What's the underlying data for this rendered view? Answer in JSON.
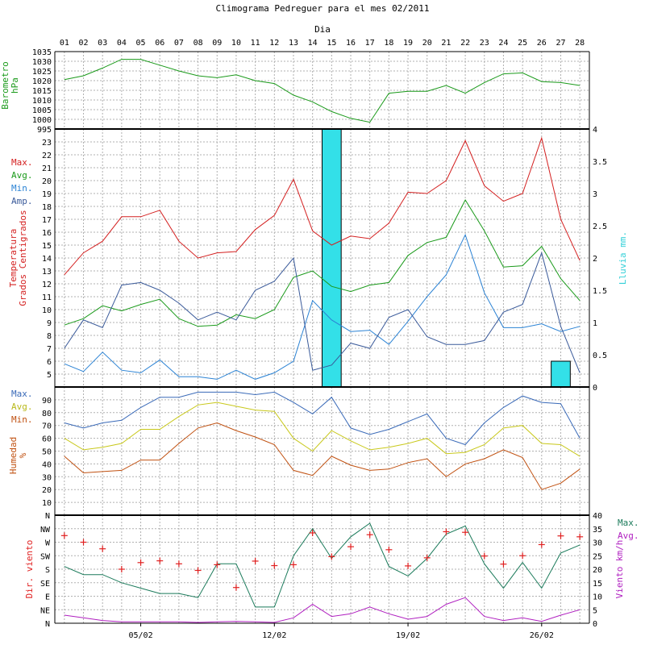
{
  "title": "Climograma Pedreguer para el mes 02/2011",
  "day_axis_label": "Dia",
  "days": [
    "01",
    "02",
    "03",
    "04",
    "05",
    "06",
    "07",
    "08",
    "09",
    "10",
    "11",
    "12",
    "13",
    "14",
    "15",
    "16",
    "17",
    "18",
    "19",
    "20",
    "21",
    "22",
    "23",
    "24",
    "25",
    "26",
    "27",
    "28"
  ],
  "date_labels": [
    {
      "label": "05/02",
      "day": 5
    },
    {
      "label": "12/02",
      "day": 12
    },
    {
      "label": "19/02",
      "day": 19
    },
    {
      "label": "26/02",
      "day": 26
    }
  ],
  "colors": {
    "pressure": "#1a9a1a",
    "temp_max": "#d42020",
    "temp_avg": "#1a9a1a",
    "temp_min": "#2a82d4",
    "temp_amp": "#3a5a9a",
    "rain": "#33e0e8",
    "hum_max": "#3a6ab8",
    "hum_avg": "#c8c81a",
    "hum_min": "#c05010",
    "wind_dir": "#e02020",
    "wind_max": "#1a7a5a",
    "wind_avg": "#b020c0"
  },
  "chart_data": [
    {
      "type": "line",
      "panel": "pressure",
      "ylabel": [
        "Barometro",
        "hPa"
      ],
      "ylim": [
        995,
        1035
      ],
      "yticks": [
        "995",
        "1000",
        "1005",
        "1010",
        "1015",
        "1020",
        "1025",
        "1030",
        "1035"
      ],
      "series": [
        {
          "values": [
            1020.5,
            1022.5,
            1026.5,
            1031,
            1031,
            1028,
            1025,
            1022.5,
            1021.5,
            1023,
            1020,
            1018.5,
            1012.5,
            1009,
            1004,
            1000.5,
            998.5,
            1013.5,
            1014.5,
            1014.5,
            1017.5,
            1013.5,
            1019,
            1023.5,
            1024,
            1019.5,
            1019,
            1017.5
          ]
        }
      ]
    },
    {
      "type": "line",
      "panel": "temperature",
      "ylabel": [
        "Temperatura",
        "Grados Centigrados"
      ],
      "y2label": "Lluvia mm.",
      "ylim": [
        4,
        24
      ],
      "yticks": [
        "5",
        "6",
        "7",
        "8",
        "9",
        "10",
        "11",
        "12",
        "13",
        "14",
        "15",
        "16",
        "17",
        "18",
        "19",
        "20",
        "21",
        "22",
        "23"
      ],
      "y2lim": [
        0,
        4
      ],
      "y2ticks": [
        "0",
        "0.5",
        "1",
        "1.5",
        "2",
        "2.5",
        "3",
        "3.5",
        "4"
      ],
      "legend": [
        "Max.",
        "Avg.",
        "Min.",
        "Amp."
      ],
      "series": [
        {
          "name": "Max.",
          "values": [
            12.7,
            14.4,
            15.3,
            17.2,
            17.2,
            17.7,
            15.3,
            14.0,
            14.4,
            14.5,
            16.2,
            17.3,
            20.1,
            16.1,
            15.0,
            15.7,
            15.5,
            16.7,
            19.1,
            19.0,
            20.0,
            23.1,
            19.6,
            18.4,
            19.0,
            23.3,
            17.0,
            13.8
          ]
        },
        {
          "name": "Avg.",
          "values": [
            8.8,
            9.3,
            10.3,
            9.9,
            10.4,
            10.8,
            9.3,
            8.7,
            8.8,
            9.6,
            9.3,
            10.0,
            12.5,
            13.0,
            11.8,
            11.4,
            11.9,
            12.1,
            14.2,
            15.2,
            15.6,
            18.5,
            16.1,
            13.3,
            13.4,
            14.9,
            12.4,
            10.7
          ]
        },
        {
          "name": "Min.",
          "values": [
            5.8,
            5.2,
            6.7,
            5.3,
            5.1,
            6.1,
            4.8,
            4.8,
            4.6,
            5.3,
            4.6,
            5.1,
            6.0,
            10.7,
            9.2,
            8.3,
            8.4,
            7.3,
            9.1,
            11.0,
            12.7,
            15.8,
            11.3,
            8.6,
            8.6,
            8.9,
            8.3,
            8.7
          ]
        },
        {
          "name": "Amp.",
          "values": [
            7.0,
            9.2,
            8.6,
            11.9,
            12.1,
            11.5,
            10.5,
            9.2,
            9.8,
            9.2,
            11.5,
            12.2,
            14.0,
            5.3,
            5.7,
            7.4,
            7.0,
            9.4,
            10.0,
            7.9,
            7.3,
            7.3,
            7.6,
            9.8,
            10.4,
            14.4,
            8.7,
            5.1
          ]
        }
      ],
      "rain": [
        {
          "day": 15,
          "value": 4.0
        },
        {
          "day": 27,
          "value": 0.4
        }
      ]
    },
    {
      "type": "line",
      "panel": "humidity",
      "ylabel": [
        "Humedad",
        "%"
      ],
      "ylim": [
        0,
        100
      ],
      "yticks": [
        "10",
        "20",
        "30",
        "40",
        "50",
        "60",
        "70",
        "80",
        "90"
      ],
      "legend": [
        "Max.",
        "Avg.",
        "Min."
      ],
      "series": [
        {
          "name": "Max.",
          "values": [
            72,
            68,
            72,
            74,
            84,
            92,
            92,
            96,
            96,
            96,
            94,
            96,
            88,
            79,
            92,
            68,
            63,
            67,
            73,
            79,
            60,
            55,
            72,
            84,
            93,
            88,
            87,
            60
          ]
        },
        {
          "name": "Avg.",
          "values": [
            60,
            51,
            53,
            56,
            67,
            67,
            77,
            86,
            88,
            85,
            82,
            81,
            60,
            50,
            66,
            58,
            51,
            53,
            56,
            60,
            48,
            49,
            55,
            68,
            70,
            56,
            55,
            46
          ]
        },
        {
          "name": "Min.",
          "values": [
            46,
            33,
            34,
            35,
            43,
            43,
            56,
            68,
            72,
            66,
            61,
            55,
            35,
            31,
            46,
            39,
            35,
            36,
            41,
            44,
            30,
            40,
            44,
            51,
            45,
            20,
            25,
            36
          ]
        }
      ]
    },
    {
      "type": "line",
      "panel": "wind",
      "ylabel": "Dir. viento",
      "y2label": "Viento km/h",
      "dir_ticks": [
        "N",
        "NE",
        "E",
        "SE",
        "S",
        "SW",
        "W",
        "NW",
        "N"
      ],
      "y2lim": [
        0,
        40
      ],
      "y2ticks": [
        "0",
        "5",
        "10",
        "15",
        "20",
        "25",
        "30",
        "35",
        "40"
      ],
      "legend": [
        "Max.",
        "Avg."
      ],
      "direction_deg": [
        292,
        270,
        248,
        180,
        202,
        208,
        198,
        176,
        195,
        119,
        207,
        192,
        195,
        301,
        222,
        255,
        295,
        245,
        191,
        218,
        305,
        303,
        224,
        197,
        225,
        262,
        291,
        288
      ],
      "series": [
        {
          "name": "Max.",
          "values": [
            21,
            18,
            18,
            15,
            13,
            11,
            11,
            9.5,
            22,
            22,
            6,
            6,
            25,
            35,
            24,
            32,
            37,
            21,
            17.5,
            24,
            33,
            36,
            22,
            13,
            22.5,
            13,
            26,
            29
          ]
        },
        {
          "name": "Avg.",
          "values": [
            3,
            2,
            1,
            0.5,
            0.5,
            0.5,
            0.5,
            0.3,
            0.5,
            0.7,
            0.5,
            0.3,
            2,
            7,
            2.5,
            3.5,
            6,
            3.5,
            1.5,
            2.5,
            7,
            9.5,
            2.5,
            1,
            2,
            0.7,
            3,
            5
          ]
        }
      ]
    }
  ]
}
